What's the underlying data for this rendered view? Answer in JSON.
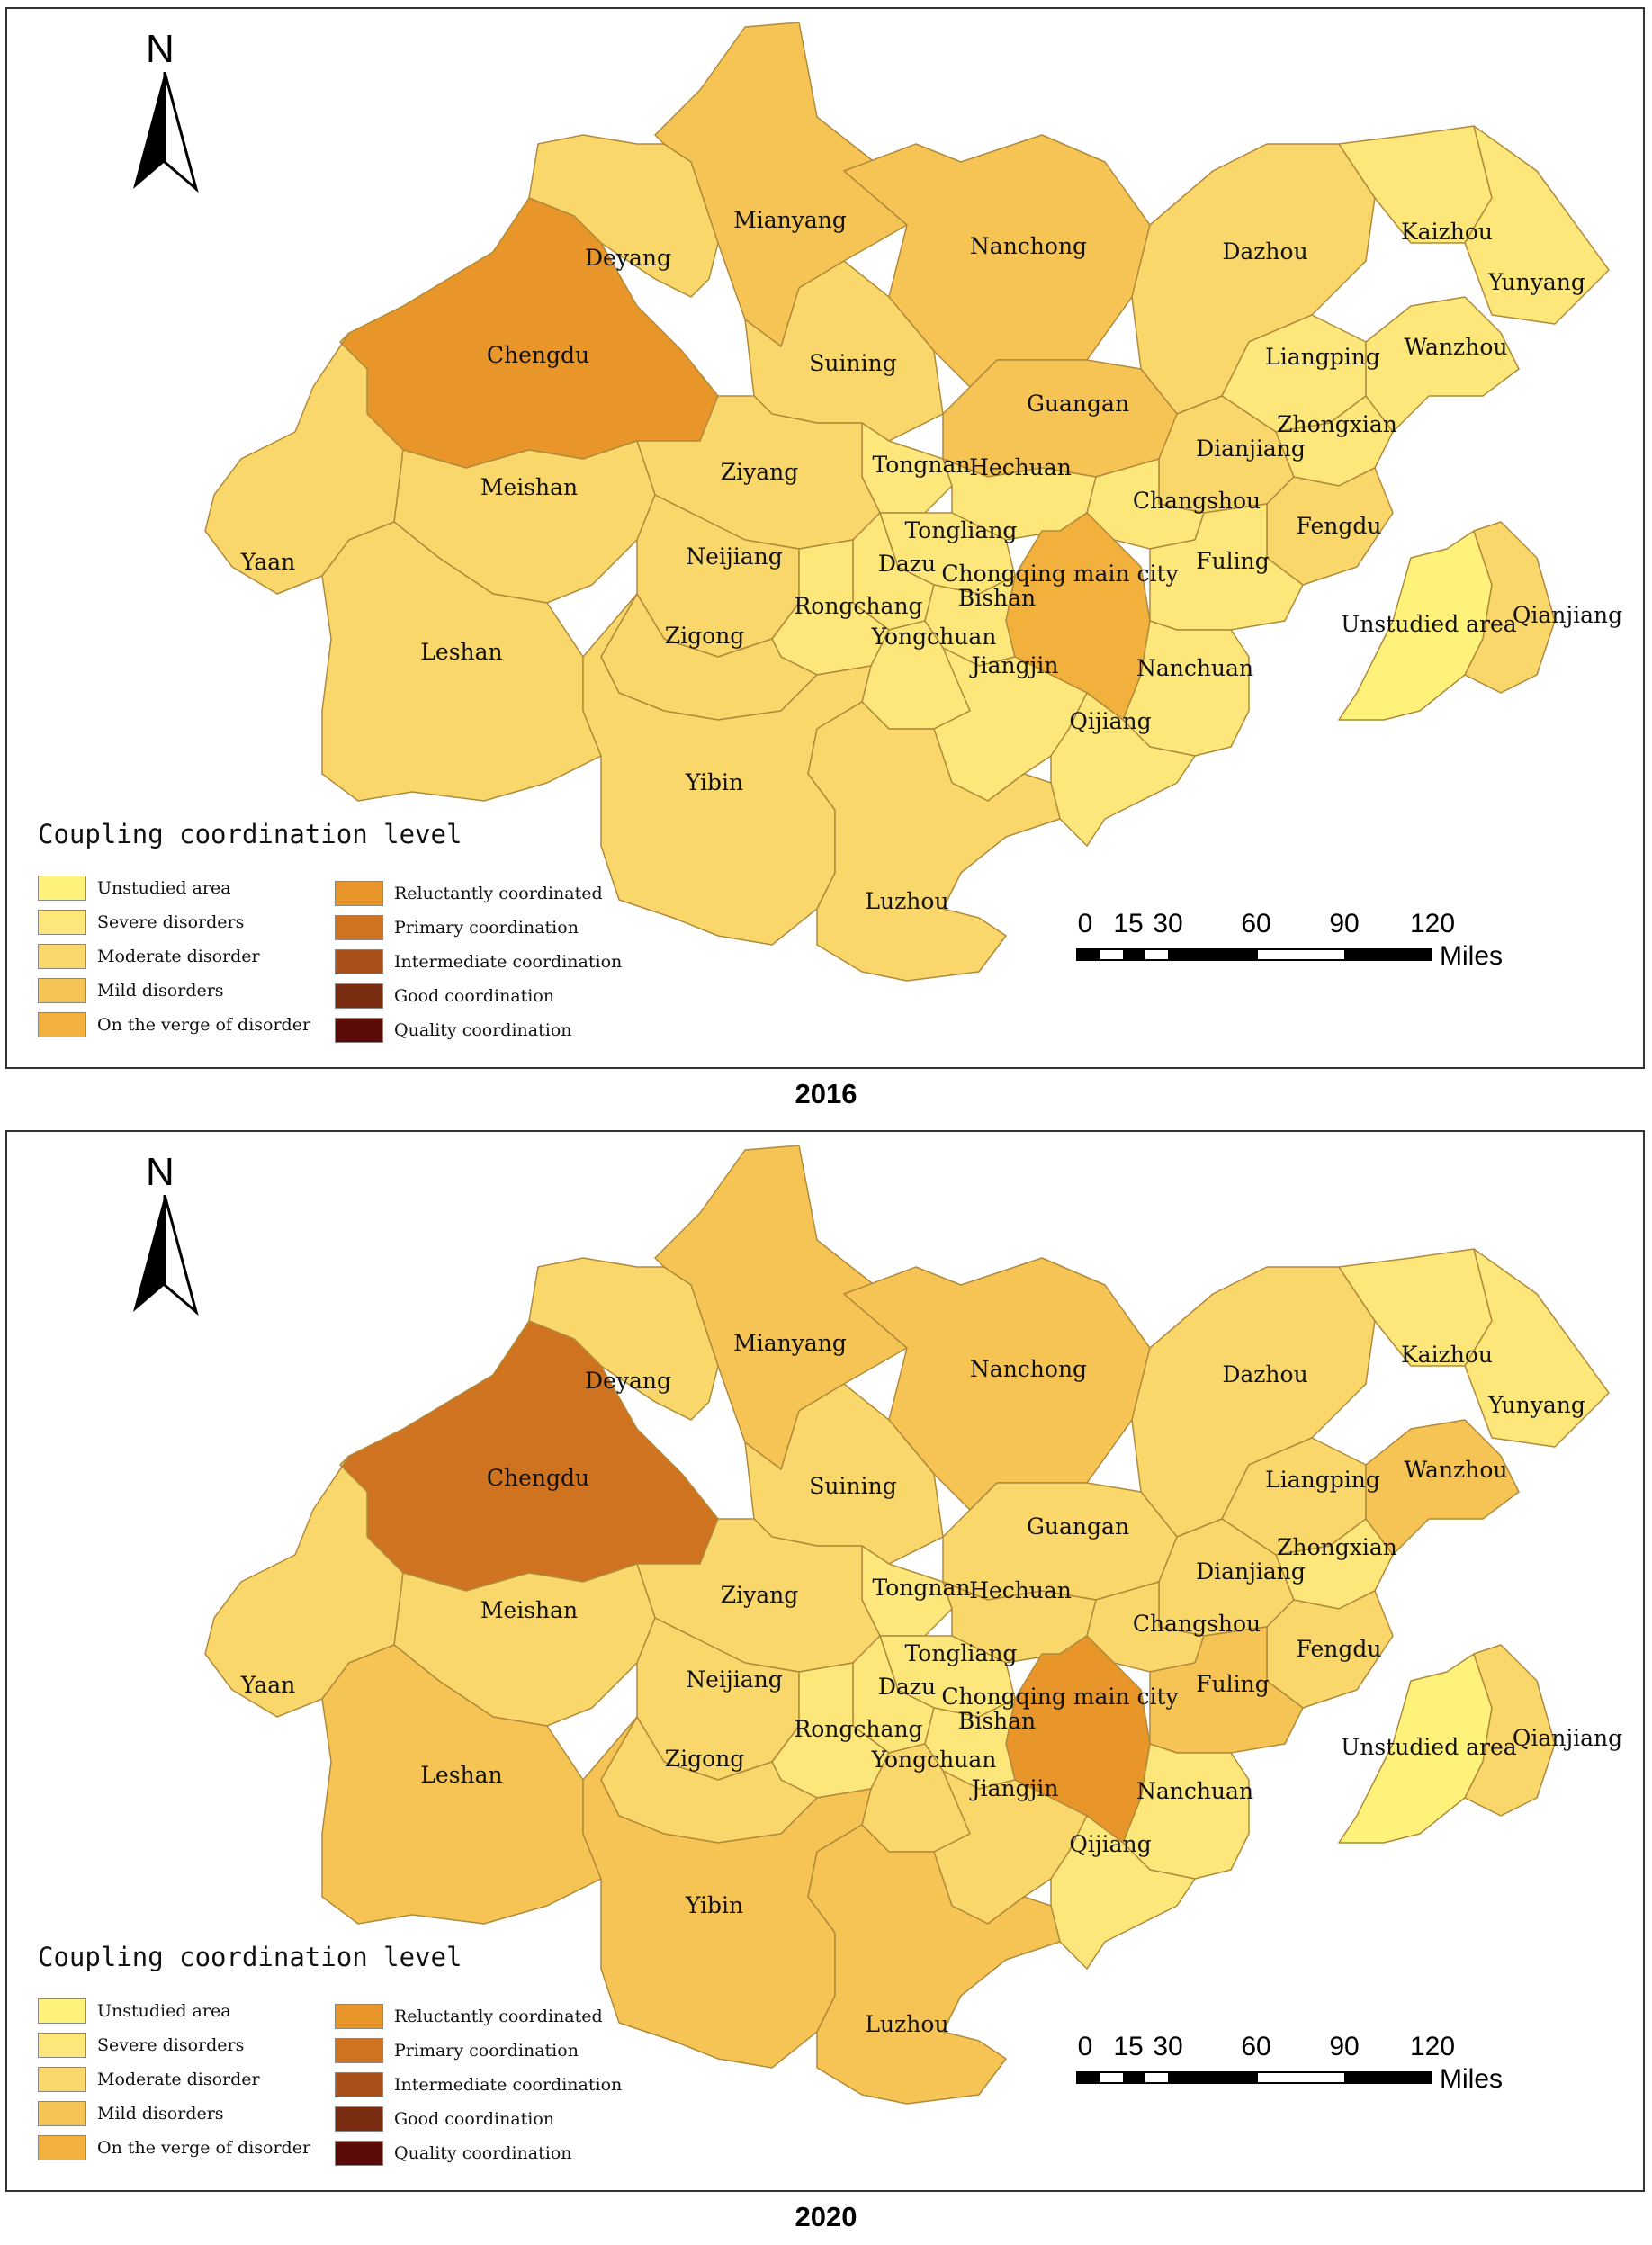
{
  "north_label": "N",
  "legend": {
    "title": "Coupling coordination level",
    "items": [
      {
        "label": "Unstudied area",
        "color": "#fff27a"
      },
      {
        "label": "Severe disorders",
        "color": "#fde67a"
      },
      {
        "label": "Moderate disorder",
        "color": "#fad76b"
      },
      {
        "label": "Mild disorders",
        "color": "#f6c455"
      },
      {
        "label": "On the verge of disorder",
        "color": "#f2b03d"
      },
      {
        "label": "Reluctantly coordinated",
        "color": "#e8952a"
      },
      {
        "label": "Primary coordination",
        "color": "#cf7320"
      },
      {
        "label": "Intermediate coordination",
        "color": "#a9511a"
      },
      {
        "label": "Good coordination",
        "color": "#7a2d10"
      },
      {
        "label": "Quality coordination",
        "color": "#5a0a07"
      }
    ]
  },
  "scale": {
    "ticks": [
      "0",
      "15",
      "30",
      "60",
      "90",
      "120"
    ],
    "unit": "Miles"
  },
  "region_names": {
    "mianyang": "Mianyang",
    "nanchong": "Nanchong",
    "dazhou": "Dazhou",
    "kaizhou": "Kaizhou",
    "yunyang": "Yunyang",
    "deyang": "Deyang",
    "chengdu": "Chengdu",
    "suining": "Suining",
    "guangan": "Guangan",
    "liangping": "Liangping",
    "wanzhou": "Wanzhou",
    "zhongxian": "Zhongxian",
    "dianjiang": "Dianjiang",
    "tongnan": "Tongnan",
    "hechuan": "Hechuan",
    "ziyang": "Ziyang",
    "meishan": "Meishan",
    "changshou": "Changshou",
    "tongliang": "Tongliang",
    "fengdu": "Fengdu",
    "yaan": "Yaan",
    "neijiang": "Neijiang",
    "dazu": "Dazu",
    "chongqing": "Chongqing main city",
    "fuling": "Fuling",
    "bishan": "Bishan",
    "rongchang": "Rongchang",
    "unstudied": "Unstudied area",
    "qianjiang": "Qianjiang",
    "leshan": "Leshan",
    "zigong": "Zigong",
    "yongchuan": "Yongchuan",
    "jiangjin": "Jiangjin",
    "nanchuan": "Nanchuan",
    "qijiang": "Qijiang",
    "yibin": "Yibin",
    "luzhou": "Luzhou"
  },
  "maps": [
    {
      "year": "2016",
      "region_levels": {
        "mianyang": "Mild disorders",
        "nanchong": "Mild disorders",
        "dazhou": "Moderate disorder",
        "kaizhou": "Severe disorders",
        "yunyang": "Severe disorders",
        "deyang": "Moderate disorder",
        "chengdu": "Reluctantly coordinated",
        "suining": "Moderate disorder",
        "guangan": "Mild disorders",
        "liangping": "Severe disorders",
        "wanzhou": "Severe disorders",
        "zhongxian": "Severe disorders",
        "dianjiang": "Moderate disorder",
        "tongnan": "Severe disorders",
        "hechuan": "Severe disorders",
        "ziyang": "Moderate disorder",
        "meishan": "Moderate disorder",
        "changshou": "Severe disorders",
        "tongliang": "Severe disorders",
        "fengdu": "Moderate disorder",
        "yaan": "Moderate disorder",
        "neijiang": "Moderate disorder",
        "dazu": "Severe disorders",
        "chongqing": "On the verge of disorder",
        "fuling": "Severe disorders",
        "bishan": "Severe disorders",
        "rongchang": "Severe disorders",
        "unstudied": "Unstudied area",
        "qianjiang": "Moderate disorder",
        "leshan": "Moderate disorder",
        "zigong": "Moderate disorder",
        "yongchuan": "Severe disorders",
        "jiangjin": "Severe disorders",
        "nanchuan": "Severe disorders",
        "qijiang": "Severe disorders",
        "yibin": "Moderate disorder",
        "luzhou": "Moderate disorder"
      }
    },
    {
      "year": "2020",
      "region_levels": {
        "mianyang": "Mild disorders",
        "nanchong": "Mild disorders",
        "dazhou": "Moderate disorder",
        "kaizhou": "Severe disorders",
        "yunyang": "Severe disorders",
        "deyang": "Moderate disorder",
        "chengdu": "Primary coordination",
        "suining": "Moderate disorder",
        "guangan": "Moderate disorder",
        "liangping": "Moderate disorder",
        "wanzhou": "Mild disorders",
        "zhongxian": "Severe disorders",
        "dianjiang": "Moderate disorder",
        "tongnan": "Severe disorders",
        "hechuan": "Moderate disorder",
        "ziyang": "Moderate disorder",
        "meishan": "Moderate disorder",
        "changshou": "Moderate disorder",
        "tongliang": "Severe disorders",
        "fengdu": "Moderate disorder",
        "yaan": "Moderate disorder",
        "neijiang": "Moderate disorder",
        "dazu": "Severe disorders",
        "chongqing": "Reluctantly coordinated",
        "fuling": "Mild disorders",
        "bishan": "Severe disorders",
        "rongchang": "Severe disorders",
        "unstudied": "Unstudied area",
        "qianjiang": "Moderate disorder",
        "leshan": "Mild disorders",
        "zigong": "Moderate disorder",
        "yongchuan": "Moderate disorder",
        "jiangjin": "Moderate disorder",
        "nanchuan": "Severe disorders",
        "qijiang": "Severe disorders",
        "yibin": "Mild disorders",
        "luzhou": "Mild disorders"
      }
    }
  ]
}
